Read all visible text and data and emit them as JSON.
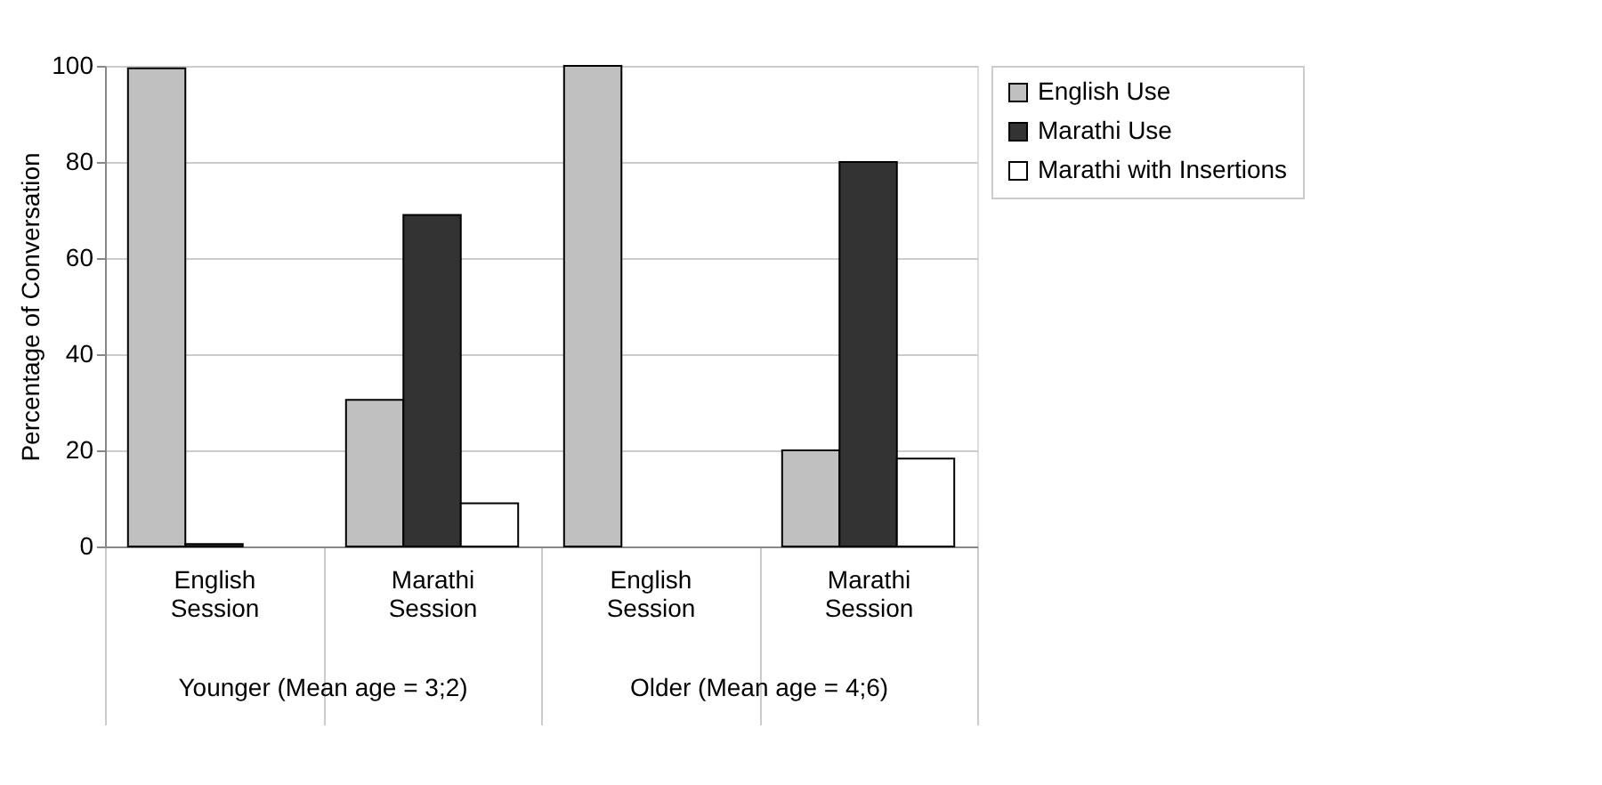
{
  "chart_data": {
    "type": "bar",
    "ylabel": "Percentage of Conversation",
    "categories": [
      "English Session",
      "Marathi Session",
      "English Session",
      "Marathi Session"
    ],
    "series": [
      {
        "name": "English Use",
        "color": "#c0c0c0",
        "values": [
          99.5,
          30.5,
          100,
          20
        ]
      },
      {
        "name": "Marathi Use",
        "color": "#333333",
        "values": [
          0.5,
          69,
          null,
          80
        ]
      },
      {
        "name": "Marathi with Insertions",
        "color": "#ffffff",
        "values": [
          null,
          9,
          null,
          18.3
        ]
      }
    ],
    "ylim": [
      0,
      100
    ],
    "yticks": [
      0,
      20,
      40,
      60,
      80,
      100
    ],
    "grid": "y",
    "legend": "right",
    "annotations": [
      "Younger  (Mean age = 3;2)",
      "Older (Mean age = 4;6)"
    ]
  }
}
